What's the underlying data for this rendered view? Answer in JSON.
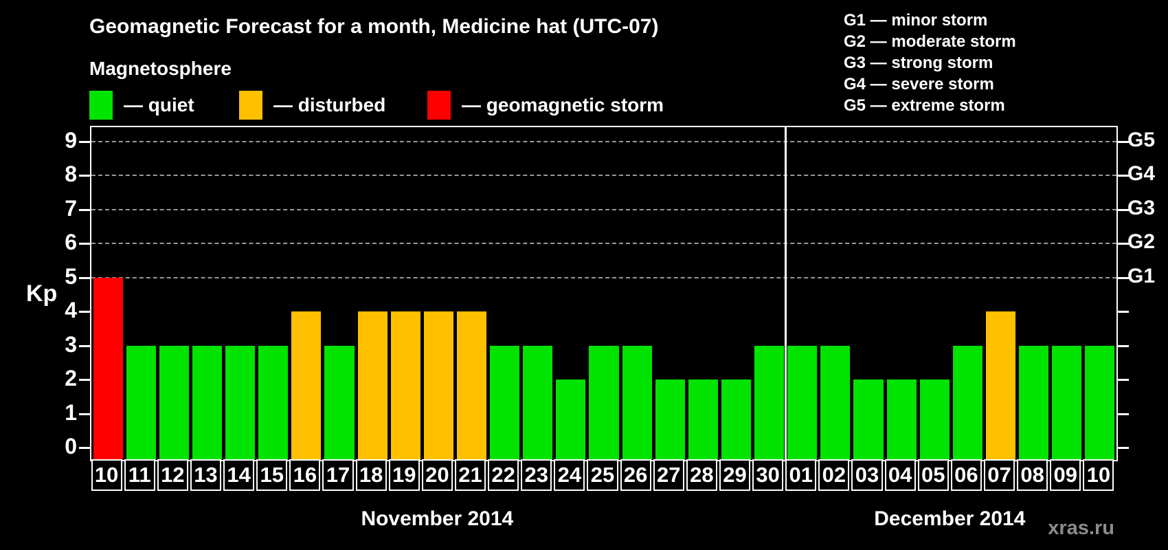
{
  "title": "Geomagnetic Forecast for a month, Medicine hat (UTC-07)",
  "legend": {
    "heading": "Magnetosphere",
    "items": [
      {
        "label": "— quiet",
        "status": "quiet",
        "color": "#00e400"
      },
      {
        "label": "— disturbed",
        "status": "disturbed",
        "color": "#ffc000"
      },
      {
        "label": "— geomagnetic storm",
        "status": "storm",
        "color": "#ff0000"
      }
    ]
  },
  "g_scale_legend": [
    {
      "text": "G1 — minor storm"
    },
    {
      "text": "G2 — moderate storm"
    },
    {
      "text": "G3 — strong storm"
    },
    {
      "text": "G4 — severe storm"
    },
    {
      "text": "G5 — extreme storm"
    }
  ],
  "watermark": "xras.ru",
  "chart_data": {
    "type": "bar",
    "ylabel": "Kp",
    "ylim": [
      0,
      9
    ],
    "yticks": [
      0,
      1,
      2,
      3,
      4,
      5,
      6,
      7,
      8,
      9
    ],
    "gridlines_at": [
      5,
      6,
      7,
      8,
      9
    ],
    "grid": "dashed, horizontal, only at G-storm levels 5-9",
    "right_axis_labels": [
      {
        "kp": 5,
        "label": "G1"
      },
      {
        "kp": 6,
        "label": "G2"
      },
      {
        "kp": 7,
        "label": "G3"
      },
      {
        "kp": 8,
        "label": "G4"
      },
      {
        "kp": 9,
        "label": "G5"
      }
    ],
    "months": [
      {
        "name": "November 2014",
        "days": 21
      },
      {
        "name": "December 2014",
        "days": 10
      }
    ],
    "categories": [
      "10",
      "11",
      "12",
      "13",
      "14",
      "15",
      "16",
      "17",
      "18",
      "19",
      "20",
      "21",
      "22",
      "23",
      "24",
      "25",
      "26",
      "27",
      "28",
      "29",
      "30",
      "01",
      "02",
      "03",
      "04",
      "05",
      "06",
      "07",
      "08",
      "09",
      "10"
    ],
    "values": [
      5,
      3,
      3,
      3,
      3,
      3,
      4,
      3,
      4,
      4,
      4,
      4,
      3,
      3,
      2,
      3,
      3,
      2,
      2,
      2,
      3,
      3,
      3,
      2,
      2,
      2,
      3,
      4,
      3,
      3,
      3
    ],
    "statuses": [
      "storm",
      "quiet",
      "quiet",
      "quiet",
      "quiet",
      "quiet",
      "disturbed",
      "quiet",
      "disturbed",
      "disturbed",
      "disturbed",
      "disturbed",
      "quiet",
      "quiet",
      "quiet",
      "quiet",
      "quiet",
      "quiet",
      "quiet",
      "quiet",
      "quiet",
      "quiet",
      "quiet",
      "quiet",
      "quiet",
      "quiet",
      "quiet",
      "disturbed",
      "quiet",
      "quiet",
      "quiet"
    ],
    "status_colors": {
      "quiet": "#00e400",
      "disturbed": "#ffc000",
      "storm": "#ff0000"
    }
  }
}
